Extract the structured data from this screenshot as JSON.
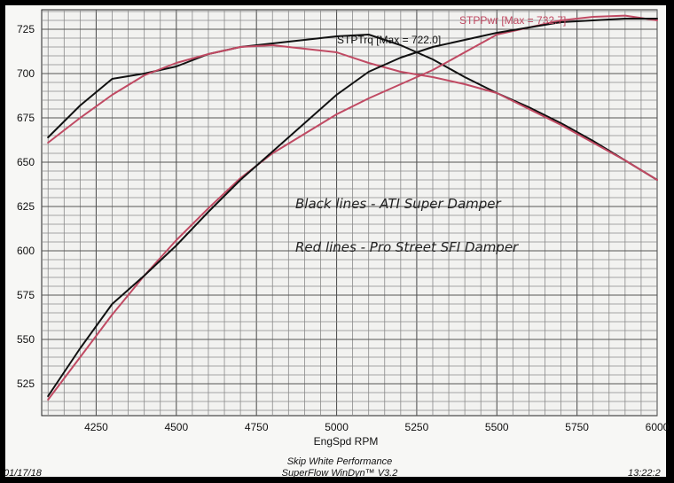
{
  "chart_data": {
    "type": "line",
    "title": "",
    "xlabel": "EngSpd RPM",
    "ylabel": "",
    "xlim": [
      4080,
      6000
    ],
    "ylim": [
      507,
      736
    ],
    "x_ticks": [
      4250,
      4500,
      4750,
      5000,
      5250,
      5500,
      5750,
      6000
    ],
    "y_ticks": [
      525,
      550,
      575,
      600,
      625,
      650,
      675,
      700,
      725
    ],
    "grid": true,
    "legend": "none",
    "series": [
      {
        "name": "STPTrq",
        "label": "STPTrq [Max = 722.0]",
        "color": "#111111",
        "x": [
          4100,
          4200,
          4300,
          4400,
          4500,
          4600,
          4700,
          4800,
          4900,
          5000,
          5100,
          5200,
          5300,
          5400,
          5500,
          5600,
          5700,
          5800,
          5900,
          6000
        ],
        "y": [
          664,
          682,
          697,
          700,
          704,
          711,
          715,
          717,
          719,
          721,
          722,
          716,
          708,
          698,
          689,
          681,
          672,
          662,
          651,
          640
        ]
      },
      {
        "name": "STPPwr",
        "label": "STPPwr [Max = 732.7]",
        "color": "#c04a63",
        "x": [
          4100,
          4200,
          4300,
          4400,
          4500,
          4600,
          4700,
          4800,
          4900,
          5000,
          5100,
          5200,
          5300,
          5400,
          5500,
          5600,
          5700,
          5800,
          5900,
          6000
        ],
        "y": [
          516,
          540,
          564,
          586,
          606,
          624,
          641,
          655,
          666,
          677,
          686,
          694,
          702,
          712,
          722,
          726,
          730,
          732,
          732.7,
          730
        ]
      },
      {
        "name": "STPTrq",
        "color": "#c04a63",
        "x": [
          4100,
          4200,
          4300,
          4400,
          4500,
          4600,
          4700,
          4800,
          4900,
          5000,
          5100,
          5200,
          5300,
          5400,
          5500,
          5600,
          5700,
          5800,
          5900,
          6000
        ],
        "y": [
          661,
          675,
          688,
          699,
          706,
          711,
          715,
          716,
          714,
          712,
          706,
          701,
          698,
          694,
          689,
          680,
          671,
          661,
          651,
          640
        ]
      },
      {
        "name": "STPPwr",
        "color": "#111111",
        "x": [
          4100,
          4200,
          4300,
          4400,
          4500,
          4600,
          4700,
          4800,
          4900,
          5000,
          5100,
          5200,
          5300,
          5400,
          5500,
          5600,
          5700,
          5800,
          5900,
          6000
        ],
        "y": [
          518,
          545,
          570,
          586,
          603,
          622,
          640,
          656,
          672,
          688,
          701,
          709,
          715,
          719,
          723,
          726,
          729,
          730,
          731,
          731
        ]
      }
    ],
    "annotations": [
      "Black lines - ATI Super Damper",
      "Red lines - Pro Street SFI Damper"
    ],
    "footer": {
      "left": "01/17/18",
      "center_line1": "Skip White Performance",
      "center_line2": "SuperFlow WinDyn™ V3.2",
      "right": "13:22:2"
    }
  }
}
